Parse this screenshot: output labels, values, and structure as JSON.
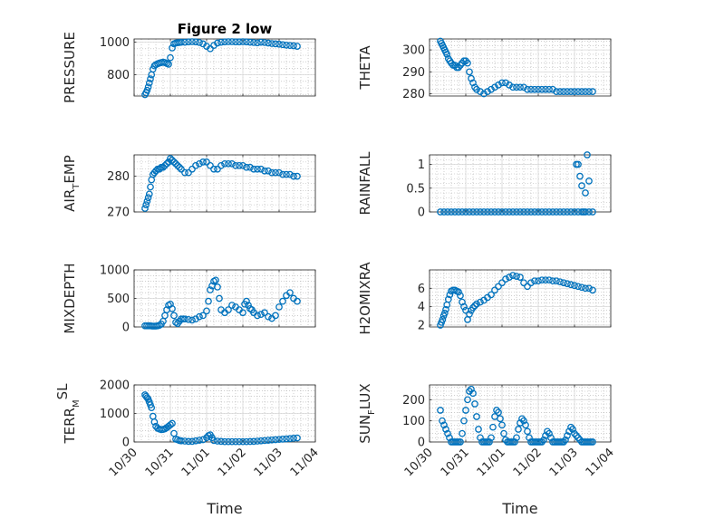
{
  "colors": {
    "marker": "#0072BD",
    "axis": "#262626",
    "grid": "#b0b0b0",
    "background": "#ffffff"
  },
  "chart_data": [
    {
      "type": "scatter",
      "id": "pressure",
      "title": "Figure 2 low",
      "ylabel": {
        "main": "PRESSURE",
        "sub": "",
        "sup": "",
        "rest": ""
      },
      "xlabel": "",
      "xlim": [
        0,
        5
      ],
      "ylim": [
        670,
        1020
      ],
      "yticks": [
        800,
        1000
      ],
      "xtick_labels": [],
      "x": [
        0.3,
        0.33,
        0.36,
        0.39,
        0.42,
        0.45,
        0.48,
        0.52,
        0.56,
        0.6,
        0.65,
        0.7,
        0.75,
        0.8,
        0.85,
        0.9,
        0.95,
        1.0,
        1.05,
        1.1,
        1.15,
        1.2,
        1.25,
        1.3,
        1.4,
        1.5,
        1.6,
        1.7,
        1.8,
        1.9,
        2.0,
        2.1,
        2.2,
        2.3,
        2.4,
        2.5,
        2.6,
        2.7,
        2.8,
        2.9,
        3.0,
        3.1,
        3.2,
        3.3,
        3.4,
        3.5,
        3.6,
        3.7,
        3.8,
        3.9,
        4.0,
        4.1,
        4.2,
        4.3,
        4.4,
        4.5
      ],
      "y": [
        678,
        690,
        705,
        725,
        750,
        775,
        800,
        835,
        855,
        862,
        868,
        872,
        875,
        878,
        875,
        870,
        865,
        905,
        965,
        990,
        995,
        997,
        998,
        1000,
        1000,
        1002,
        1003,
        1002,
        998,
        990,
        975,
        960,
        980,
        995,
        1000,
        1002,
        1003,
        1003,
        1002,
        1002,
        1003,
        1002,
        1000,
        998,
        996,
        1000,
        998,
        995,
        992,
        990,
        988,
        985,
        982,
        980,
        978,
        975
      ]
    },
    {
      "type": "scatter",
      "id": "theta",
      "title": "",
      "ylabel": {
        "main": "THETA",
        "sub": "",
        "sup": "",
        "rest": ""
      },
      "xlabel": "",
      "xlim": [
        0,
        5
      ],
      "ylim": [
        279,
        305
      ],
      "yticks": [
        280,
        290,
        300
      ],
      "xtick_labels": [],
      "x": [
        0.3,
        0.33,
        0.36,
        0.39,
        0.42,
        0.45,
        0.48,
        0.52,
        0.56,
        0.6,
        0.65,
        0.7,
        0.75,
        0.8,
        0.85,
        0.9,
        0.95,
        1.0,
        1.05,
        1.1,
        1.15,
        1.2,
        1.25,
        1.3,
        1.4,
        1.5,
        1.6,
        1.7,
        1.8,
        1.9,
        2.0,
        2.1,
        2.2,
        2.3,
        2.4,
        2.5,
        2.6,
        2.7,
        2.8,
        2.9,
        3.0,
        3.1,
        3.2,
        3.3,
        3.4,
        3.5,
        3.6,
        3.7,
        3.8,
        3.9,
        4.0,
        4.1,
        4.2,
        4.3,
        4.4,
        4.5
      ],
      "y": [
        304,
        303,
        302,
        301,
        300,
        299,
        298,
        296,
        295,
        294,
        293,
        293,
        292,
        292,
        293,
        294,
        295,
        295,
        294,
        290,
        287,
        285,
        283,
        282,
        281,
        280,
        281,
        282,
        283,
        284,
        285,
        285,
        284,
        283,
        283,
        283,
        283,
        282,
        282,
        282,
        282,
        282,
        282,
        282,
        282,
        281,
        281,
        281,
        281,
        281,
        281,
        281,
        281,
        281,
        281,
        281
      ]
    },
    {
      "type": "scatter",
      "id": "air_temp",
      "title": "",
      "ylabel": {
        "main": "AIR",
        "sub": "T",
        "sup": "",
        "rest": "EMP"
      },
      "xlabel": "",
      "xlim": [
        0,
        5
      ],
      "ylim": [
        270,
        286
      ],
      "yticks": [
        270,
        280
      ],
      "xtick_labels": [],
      "x": [
        0.3,
        0.33,
        0.36,
        0.39,
        0.42,
        0.45,
        0.48,
        0.52,
        0.56,
        0.6,
        0.65,
        0.7,
        0.75,
        0.8,
        0.85,
        0.9,
        0.95,
        1.0,
        1.05,
        1.1,
        1.15,
        1.2,
        1.25,
        1.3,
        1.4,
        1.5,
        1.6,
        1.7,
        1.8,
        1.9,
        2.0,
        2.1,
        2.2,
        2.3,
        2.4,
        2.5,
        2.6,
        2.7,
        2.8,
        2.9,
        3.0,
        3.1,
        3.2,
        3.3,
        3.4,
        3.5,
        3.6,
        3.7,
        3.8,
        3.9,
        4.0,
        4.1,
        4.2,
        4.3,
        4.4,
        4.5
      ],
      "y": [
        271,
        272,
        273,
        274,
        275,
        277,
        279,
        280.5,
        281,
        281.5,
        282,
        282,
        282.5,
        282.5,
        283,
        283.5,
        284,
        285,
        284.5,
        284,
        283.5,
        283,
        282.5,
        282,
        281,
        281,
        282,
        283,
        283.5,
        284,
        284,
        283,
        282,
        282,
        283,
        283.5,
        283.5,
        283.5,
        283,
        283,
        283,
        282.5,
        282.5,
        282,
        282,
        282,
        281.5,
        281.5,
        281,
        281,
        281,
        280.5,
        280.5,
        280.5,
        280,
        280
      ]
    },
    {
      "type": "scatter",
      "id": "rainfall",
      "title": "",
      "ylabel": {
        "main": "RAINFALL",
        "sub": "",
        "sup": "",
        "rest": ""
      },
      "xlabel": "",
      "xlim": [
        0,
        5
      ],
      "ylim": [
        0,
        1.2
      ],
      "yticks": [
        0,
        0.5,
        1
      ],
      "xtick_labels": [],
      "x": [
        0.3,
        0.4,
        0.5,
        0.6,
        0.7,
        0.8,
        0.9,
        1.0,
        1.1,
        1.2,
        1.3,
        1.4,
        1.5,
        1.6,
        1.7,
        1.8,
        1.9,
        2.0,
        2.1,
        2.2,
        2.3,
        2.4,
        2.5,
        2.6,
        2.7,
        2.8,
        2.9,
        3.0,
        3.1,
        3.2,
        3.3,
        3.4,
        3.5,
        3.6,
        3.7,
        3.8,
        3.9,
        4.0,
        4.1,
        4.2,
        4.3,
        4.4,
        4.5,
        4.05,
        4.1,
        4.15,
        4.2,
        4.25,
        4.3,
        4.35,
        4.4
      ],
      "y": [
        0,
        0,
        0,
        0,
        0,
        0,
        0,
        0,
        0,
        0,
        0,
        0,
        0,
        0,
        0,
        0,
        0,
        0,
        0,
        0,
        0,
        0,
        0,
        0,
        0,
        0,
        0,
        0,
        0,
        0,
        0,
        0,
        0,
        0,
        0,
        0,
        0,
        0,
        0,
        0,
        0,
        0,
        0,
        1.0,
        1.0,
        0.75,
        0.55,
        0,
        0.4,
        1.2,
        0.65
      ]
    },
    {
      "type": "scatter",
      "id": "mixdepth",
      "title": "",
      "ylabel": {
        "main": "MIXDEPTH",
        "sub": "",
        "sup": "",
        "rest": ""
      },
      "xlabel": "",
      "xlim": [
        0,
        5
      ],
      "ylim": [
        0,
        1000
      ],
      "yticks": [
        0,
        500,
        1000
      ],
      "xtick_labels": [],
      "x": [
        0.3,
        0.35,
        0.4,
        0.45,
        0.5,
        0.55,
        0.6,
        0.65,
        0.7,
        0.75,
        0.8,
        0.85,
        0.9,
        0.95,
        1.0,
        1.05,
        1.1,
        1.15,
        1.2,
        1.25,
        1.3,
        1.35,
        1.4,
        1.5,
        1.6,
        1.7,
        1.8,
        1.9,
        2.0,
        2.05,
        2.1,
        2.15,
        2.2,
        2.25,
        2.3,
        2.35,
        2.4,
        2.5,
        2.6,
        2.7,
        2.8,
        2.9,
        3.0,
        3.05,
        3.1,
        3.15,
        3.2,
        3.25,
        3.3,
        3.4,
        3.5,
        3.6,
        3.7,
        3.8,
        3.9,
        4.0,
        4.1,
        4.2,
        4.3,
        4.4,
        4.5
      ],
      "y": [
        20,
        20,
        20,
        20,
        15,
        15,
        15,
        20,
        30,
        50,
        100,
        200,
        300,
        380,
        400,
        320,
        200,
        80,
        60,
        100,
        140,
        140,
        140,
        130,
        120,
        140,
        180,
        200,
        280,
        450,
        650,
        720,
        800,
        820,
        700,
        500,
        300,
        250,
        300,
        380,
        350,
        300,
        250,
        400,
        450,
        380,
        320,
        300,
        250,
        200,
        220,
        250,
        180,
        150,
        200,
        350,
        450,
        550,
        600,
        500,
        450
      ]
    },
    {
      "type": "scatter",
      "id": "h2omixra",
      "title": "",
      "ylabel": {
        "main": "H2OMIXRA",
        "sub": "",
        "sup": "",
        "rest": ""
      },
      "xlabel": "",
      "xlim": [
        0,
        5
      ],
      "ylim": [
        1.8,
        8
      ],
      "yticks": [
        2,
        4,
        6
      ],
      "xtick_labels": [],
      "x": [
        0.3,
        0.33,
        0.36,
        0.39,
        0.42,
        0.45,
        0.48,
        0.52,
        0.56,
        0.6,
        0.65,
        0.7,
        0.75,
        0.8,
        0.85,
        0.9,
        0.95,
        1.0,
        1.05,
        1.1,
        1.15,
        1.2,
        1.25,
        1.3,
        1.4,
        1.5,
        1.6,
        1.7,
        1.8,
        1.9,
        2.0,
        2.1,
        2.2,
        2.3,
        2.4,
        2.5,
        2.6,
        2.7,
        2.8,
        2.9,
        3.0,
        3.1,
        3.2,
        3.3,
        3.4,
        3.5,
        3.6,
        3.7,
        3.8,
        3.9,
        4.0,
        4.1,
        4.2,
        4.3,
        4.4,
        4.5
      ],
      "y": [
        2,
        2.3,
        2.6,
        3,
        3.3,
        3.7,
        4.2,
        4.8,
        5.3,
        5.7,
        5.8,
        5.8,
        5.7,
        5.6,
        5.2,
        4.5,
        4,
        3.6,
        2.6,
        3.2,
        3.6,
        3.9,
        4.1,
        4.3,
        4.5,
        4.7,
        5,
        5.3,
        5.8,
        6.2,
        6.6,
        7,
        7.2,
        7.4,
        7.3,
        7.2,
        6.6,
        6.2,
        6.6,
        6.8,
        6.8,
        6.9,
        6.9,
        6.9,
        6.8,
        6.8,
        6.7,
        6.6,
        6.5,
        6.4,
        6.3,
        6.2,
        6.1,
        6,
        6,
        5.8
      ]
    },
    {
      "type": "scatter",
      "id": "terrmsl",
      "title": "",
      "ylabel": {
        "main": "TERR",
        "sub": "M",
        "sup": "SL",
        "rest": ""
      },
      "xlabel": "Time",
      "xlim": [
        0,
        5
      ],
      "ylim": [
        0,
        2000
      ],
      "yticks": [
        0,
        1000,
        2000
      ],
      "xtick_labels": [
        "10/30",
        "10/31",
        "11/01",
        "11/02",
        "11/03",
        "11/04"
      ],
      "x": [
        0.3,
        0.33,
        0.36,
        0.39,
        0.42,
        0.45,
        0.48,
        0.52,
        0.56,
        0.6,
        0.65,
        0.7,
        0.75,
        0.8,
        0.85,
        0.9,
        0.95,
        1.0,
        1.05,
        1.1,
        1.15,
        1.2,
        1.25,
        1.3,
        1.4,
        1.5,
        1.6,
        1.7,
        1.8,
        1.9,
        2.0,
        2.05,
        2.1,
        2.15,
        2.2,
        2.3,
        2.4,
        2.5,
        2.6,
        2.7,
        2.8,
        2.9,
        3.0,
        3.1,
        3.2,
        3.3,
        3.4,
        3.5,
        3.6,
        3.7,
        3.8,
        3.9,
        4.0,
        4.1,
        4.2,
        4.3,
        4.4,
        4.5
      ],
      "y": [
        1650,
        1600,
        1550,
        1500,
        1400,
        1300,
        1200,
        900,
        700,
        550,
        480,
        450,
        430,
        440,
        460,
        500,
        550,
        600,
        650,
        300,
        100,
        80,
        50,
        40,
        30,
        20,
        20,
        40,
        60,
        80,
        150,
        220,
        250,
        150,
        50,
        30,
        20,
        10,
        10,
        10,
        10,
        10,
        10,
        10,
        15,
        20,
        30,
        40,
        50,
        60,
        70,
        80,
        90,
        100,
        110,
        120,
        130,
        140
      ]
    },
    {
      "type": "scatter",
      "id": "sunflux",
      "title": "",
      "ylabel": {
        "main": "SUN",
        "sub": "F",
        "sup": "",
        "rest": "LUX"
      },
      "xlabel": "Time",
      "xlim": [
        0,
        5
      ],
      "ylim": [
        0,
        270
      ],
      "yticks": [
        0,
        100,
        200
      ],
      "xtick_labels": [
        "10/30",
        "10/31",
        "11/01",
        "11/02",
        "11/03",
        "11/04"
      ],
      "x": [
        0.3,
        0.35,
        0.4,
        0.45,
        0.5,
        0.55,
        0.6,
        0.65,
        0.7,
        0.75,
        0.8,
        0.85,
        0.9,
        0.95,
        1.0,
        1.05,
        1.1,
        1.15,
        1.2,
        1.25,
        1.3,
        1.35,
        1.4,
        1.45,
        1.5,
        1.55,
        1.6,
        1.65,
        1.7,
        1.75,
        1.8,
        1.85,
        1.9,
        1.95,
        2.0,
        2.05,
        2.1,
        2.15,
        2.2,
        2.25,
        2.3,
        2.35,
        2.4,
        2.45,
        2.5,
        2.55,
        2.6,
        2.65,
        2.7,
        2.75,
        2.8,
        2.85,
        2.9,
        2.95,
        3.0,
        3.05,
        3.1,
        3.15,
        3.2,
        3.25,
        3.3,
        3.35,
        3.4,
        3.45,
        3.5,
        3.55,
        3.6,
        3.65,
        3.7,
        3.75,
        3.8,
        3.85,
        3.9,
        3.95,
        4.0,
        4.05,
        4.1,
        4.15,
        4.2,
        4.25,
        4.3,
        4.35,
        4.4,
        4.45,
        4.5
      ],
      "y": [
        150,
        100,
        80,
        60,
        40,
        20,
        0,
        0,
        0,
        0,
        0,
        0,
        40,
        100,
        150,
        200,
        240,
        250,
        230,
        180,
        120,
        60,
        20,
        0,
        0,
        0,
        0,
        0,
        20,
        70,
        120,
        150,
        140,
        110,
        80,
        40,
        10,
        0,
        0,
        0,
        0,
        0,
        20,
        60,
        90,
        110,
        100,
        80,
        50,
        20,
        0,
        0,
        0,
        0,
        0,
        0,
        0,
        10,
        30,
        50,
        40,
        20,
        0,
        0,
        0,
        0,
        0,
        0,
        0,
        10,
        30,
        50,
        70,
        60,
        40,
        30,
        20,
        10,
        0,
        0,
        0,
        0,
        0,
        0,
        0
      ]
    }
  ]
}
